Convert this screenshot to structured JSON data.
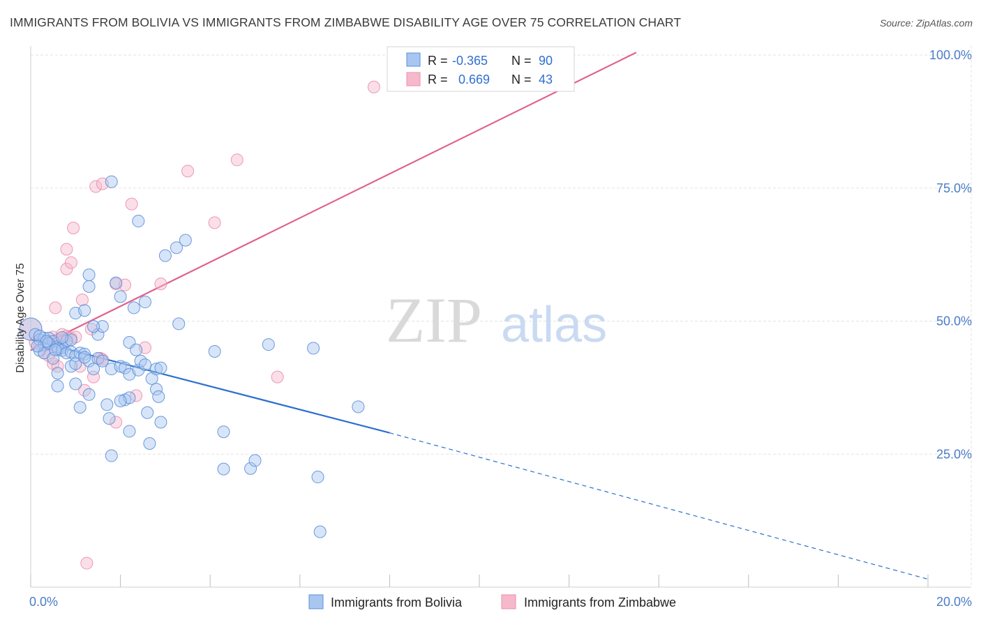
{
  "header": {
    "title": "IMMIGRANTS FROM BOLIVIA VS IMMIGRANTS FROM ZIMBABWE DISABILITY AGE OVER 75 CORRELATION CHART",
    "source": "Source: ZipAtlas.com"
  },
  "watermark": {
    "zip": "ZIP",
    "atlas": "atlas"
  },
  "legend": {
    "rows": [
      {
        "r_label": "R = ",
        "r_value": "-0.365",
        "n_label": "N = ",
        "n_value": "90"
      },
      {
        "r_label": "R = ",
        "r_value": "0.669",
        "n_label": "N = ",
        "n_value": "43"
      }
    ]
  },
  "colors": {
    "bolivia_fill": "#a9c6f0",
    "bolivia_stroke": "#5a8fd8",
    "bolivia_line": "#2b6fd0",
    "zimbabwe_fill": "#f6b9cb",
    "zimbabwe_stroke": "#e98fab",
    "zimbabwe_line": "#e0628c",
    "grid": "#e3e3e3",
    "tick_label": "#4a7cc7"
  },
  "chart_data": {
    "type": "scatter",
    "title": "IMMIGRANTS FROM BOLIVIA VS IMMIGRANTS FROM ZIMBABWE DISABILITY AGE OVER 75 CORRELATION CHART",
    "xlabel": "",
    "ylabel": "Disability Age Over 75",
    "xlim": [
      0,
      20
    ],
    "ylim": [
      0,
      100
    ],
    "x_tick_labels": [
      "0.0%",
      "20.0%"
    ],
    "y_ticks": [
      25,
      50,
      75,
      100
    ],
    "y_tick_labels": [
      "25.0%",
      "50.0%",
      "75.0%",
      "100.0%"
    ],
    "grid": true,
    "legend_position": "top-center",
    "series": [
      {
        "name": "Immigrants from Bolivia",
        "r": -0.365,
        "n": 90,
        "trend": {
          "x": [
            0,
            8,
            20
          ],
          "y": [
            46.5,
            29.0,
            1.5
          ],
          "solid_until": 8
        },
        "points": [
          [
            0.0,
            48.5
          ],
          [
            0.1,
            47.5
          ],
          [
            0.2,
            46.5
          ],
          [
            0.3,
            45.5
          ],
          [
            0.3,
            46.8
          ],
          [
            0.4,
            46.8
          ],
          [
            0.5,
            46.2
          ],
          [
            0.6,
            45.2
          ],
          [
            0.7,
            45.0
          ],
          [
            0.8,
            46.3
          ],
          [
            0.2,
            44.5
          ],
          [
            0.3,
            44.0
          ],
          [
            0.5,
            43.0
          ],
          [
            0.6,
            44.8
          ],
          [
            0.7,
            44.5
          ],
          [
            0.8,
            44.0
          ],
          [
            0.9,
            44.2
          ],
          [
            1.0,
            43.5
          ],
          [
            1.1,
            44.0
          ],
          [
            1.2,
            43.8
          ],
          [
            0.9,
            41.5
          ],
          [
            1.0,
            42.0
          ],
          [
            1.3,
            42.5
          ],
          [
            1.4,
            41.0
          ],
          [
            1.5,
            43.0
          ],
          [
            1.6,
            42.5
          ],
          [
            0.6,
            40.2
          ],
          [
            0.6,
            37.8
          ],
          [
            1.0,
            38.2
          ],
          [
            1.3,
            36.2
          ],
          [
            1.1,
            33.8
          ],
          [
            1.7,
            34.3
          ],
          [
            1.75,
            31.7
          ],
          [
            1.8,
            24.7
          ],
          [
            1.5,
            47.5
          ],
          [
            1.6,
            49.0
          ],
          [
            1.0,
            51.5
          ],
          [
            1.2,
            52.0
          ],
          [
            1.3,
            56.5
          ],
          [
            1.3,
            58.7
          ],
          [
            1.4,
            49.0
          ],
          [
            1.9,
            57.2
          ],
          [
            2.0,
            54.6
          ],
          [
            2.3,
            52.5
          ],
          [
            2.55,
            53.6
          ],
          [
            2.2,
            46.0
          ],
          [
            1.8,
            41.0
          ],
          [
            2.0,
            41.5
          ],
          [
            2.1,
            41.2
          ],
          [
            2.2,
            40.0
          ],
          [
            2.35,
            44.6
          ],
          [
            2.4,
            40.8
          ],
          [
            2.45,
            42.5
          ],
          [
            2.55,
            41.8
          ],
          [
            2.7,
            39.2
          ],
          [
            2.8,
            41.0
          ],
          [
            2.9,
            41.2
          ],
          [
            2.8,
            37.2
          ],
          [
            2.85,
            35.8
          ],
          [
            2.6,
            32.8
          ],
          [
            2.9,
            31.0
          ],
          [
            2.65,
            27.0
          ],
          [
            2.2,
            29.3
          ],
          [
            2.1,
            35.2
          ],
          [
            2.2,
            35.6
          ],
          [
            1.8,
            76.2
          ],
          [
            2.4,
            68.8
          ],
          [
            3.0,
            62.3
          ],
          [
            3.25,
            63.8
          ],
          [
            3.45,
            65.2
          ],
          [
            2.0,
            35.0
          ],
          [
            3.3,
            49.5
          ],
          [
            4.1,
            44.3
          ],
          [
            4.3,
            29.2
          ],
          [
            4.3,
            22.2
          ],
          [
            4.9,
            22.3
          ],
          [
            5.0,
            23.8
          ],
          [
            5.3,
            45.6
          ],
          [
            6.3,
            44.9
          ],
          [
            6.4,
            20.7
          ],
          [
            6.45,
            10.4
          ],
          [
            7.3,
            33.9
          ],
          [
            0.2,
            47.2
          ],
          [
            0.4,
            45.8
          ],
          [
            0.55,
            44.6
          ],
          [
            0.9,
            46.5
          ],
          [
            1.2,
            43.2
          ],
          [
            0.35,
            46.2
          ],
          [
            0.15,
            45.3
          ],
          [
            0.7,
            46.9
          ]
        ]
      },
      {
        "name": "Immigrants from Zimbabwe",
        "r": 0.669,
        "n": 43,
        "trend": {
          "x": [
            0,
            13.5
          ],
          "y": [
            44.5,
            100.5
          ]
        },
        "points": [
          [
            0.0,
            48.5
          ],
          [
            0.1,
            46.0
          ],
          [
            0.2,
            45.5
          ],
          [
            0.3,
            44.0
          ],
          [
            0.4,
            43.5
          ],
          [
            0.5,
            42.0
          ],
          [
            0.6,
            41.5
          ],
          [
            0.4,
            46.0
          ],
          [
            0.5,
            47.0
          ],
          [
            0.6,
            46.5
          ],
          [
            0.7,
            47.5
          ],
          [
            0.8,
            47.2
          ],
          [
            0.9,
            46.8
          ],
          [
            1.0,
            47.0
          ],
          [
            0.55,
            52.5
          ],
          [
            0.8,
            59.8
          ],
          [
            0.8,
            63.5
          ],
          [
            0.9,
            61.0
          ],
          [
            0.95,
            67.5
          ],
          [
            1.15,
            54.0
          ],
          [
            1.35,
            48.5
          ],
          [
            1.1,
            41.5
          ],
          [
            1.2,
            37.0
          ],
          [
            1.4,
            39.5
          ],
          [
            1.55,
            43.0
          ],
          [
            1.45,
            75.3
          ],
          [
            1.6,
            75.8
          ],
          [
            1.9,
            57.0
          ],
          [
            2.1,
            56.8
          ],
          [
            2.25,
            72.0
          ],
          [
            1.9,
            31.0
          ],
          [
            2.35,
            36.0
          ],
          [
            2.55,
            45.0
          ],
          [
            2.9,
            57.0
          ],
          [
            3.5,
            78.2
          ],
          [
            4.1,
            68.5
          ],
          [
            4.6,
            80.3
          ],
          [
            5.5,
            39.5
          ],
          [
            7.65,
            94.0
          ],
          [
            11.3,
            100.0
          ],
          [
            1.25,
            4.5
          ],
          [
            0.6,
            44.6
          ],
          [
            1.6,
            42.8
          ]
        ]
      }
    ]
  }
}
